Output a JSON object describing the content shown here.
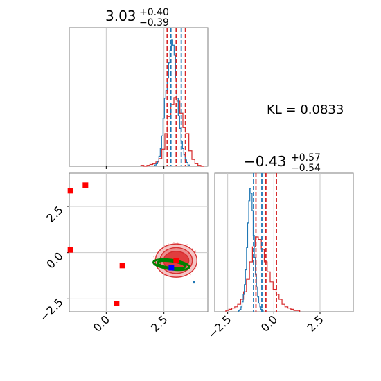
{
  "colors": {
    "red": "#d62728",
    "blue": "#1f77b4",
    "green": "#008000",
    "marker_blue": "#0000ff",
    "marker_red": "#ff0000",
    "grid": "#c8c8c8",
    "axis": "#7f7f7f"
  },
  "chart_data": {
    "type": "corner",
    "annotation": "KL = 0.0833",
    "parameters": [
      {
        "median": "3.03",
        "upper": "+0.40",
        "lower": "−0.39"
      },
      {
        "median": "−0.43",
        "upper": "+0.57",
        "lower": "−0.54"
      }
    ],
    "x_range": [
      -1.6,
      4.4
    ],
    "y_range": [
      -3.2,
      4.3
    ],
    "x_ticks": [
      {
        "value": 0.0,
        "label": "0.0"
      },
      {
        "value": 2.5,
        "label": "2.5"
      }
    ],
    "y_ticks": [
      {
        "value": 2.5,
        "label": "2.5"
      },
      {
        "value": 0.0,
        "label": "0.0"
      },
      {
        "value": -2.5,
        "label": "−2.5"
      }
    ],
    "p1_range": [
      -3.2,
      4.3
    ],
    "p1_ticks": [
      {
        "value": -2.5,
        "label": "−2.5"
      },
      {
        "value": 0.0,
        "label": "0.0"
      },
      {
        "value": 2.5,
        "label": "2.5"
      }
    ],
    "hist_top": {
      "red_quantiles": [
        2.64,
        3.03,
        3.43
      ],
      "blue_quantiles": [
        2.8,
        3.25
      ],
      "red_bins": {
        "start": 1.5,
        "width": 0.13,
        "counts": [
          1,
          0,
          1,
          2,
          3,
          5,
          9,
          20,
          38,
          58,
          72,
          80,
          76,
          62,
          45,
          38,
          18,
          8,
          3,
          1,
          0
        ]
      },
      "blue_bins": {
        "start": 2.1,
        "width": 0.06,
        "counts": [
          1,
          2,
          4,
          8,
          14,
          24,
          38,
          54,
          60,
          70,
          82,
          92,
          100,
          96,
          88,
          70,
          54,
          40,
          30,
          20,
          14,
          9,
          5,
          3,
          1
        ]
      }
    },
    "hist_right": {
      "red_quantiles": [
        -0.97,
        -0.43,
        0.14
      ],
      "blue_quantiles": [
        -1.1,
        -0.65
      ],
      "red_bins": {
        "start": -2.6,
        "width": 0.16,
        "counts": [
          1,
          2,
          3,
          4,
          6,
          10,
          16,
          26,
          40,
          52,
          60,
          58,
          50,
          40,
          32,
          24,
          18,
          14,
          10,
          6,
          4,
          3,
          2,
          1,
          1
        ]
      },
      "blue_bins": {
        "start": -1.9,
        "width": 0.06,
        "counts": [
          1,
          2,
          4,
          8,
          14,
          22,
          34,
          52,
          72,
          90,
          100,
          96,
          82,
          62,
          44,
          30,
          20,
          12,
          7,
          4,
          2,
          1
        ]
      }
    },
    "joint": {
      "red_center": [
        3.03,
        -0.43
      ],
      "red_radii": [
        [
          0.55,
          0.5
        ],
        [
          0.7,
          0.7
        ],
        [
          0.9,
          0.9
        ]
      ],
      "green_ellipses": [
        {
          "center": [
            2.82,
            -0.65
          ],
          "rx": 0.78,
          "ry": 0.26,
          "angle_deg": -8
        },
        {
          "center": [
            2.82,
            -0.65
          ],
          "rx": 0.6,
          "ry": 0.18,
          "angle_deg": -8
        }
      ],
      "red_markers": [
        [
          -1.55,
          3.35
        ],
        [
          -0.9,
          3.65
        ],
        [
          -1.55,
          0.15
        ],
        [
          0.7,
          -0.7
        ],
        [
          0.45,
          -2.75
        ],
        [
          3.03,
          -0.43
        ]
      ],
      "blue_markers": [
        [
          2.82,
          -0.82
        ],
        [
          3.8,
          -1.6
        ]
      ]
    }
  }
}
